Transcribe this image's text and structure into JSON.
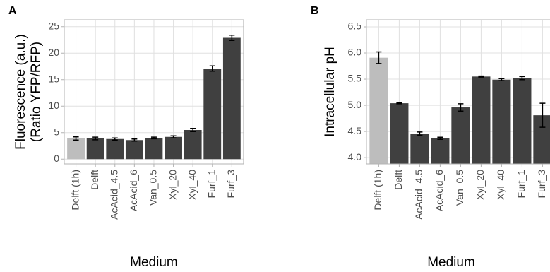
{
  "chart_data": [
    {
      "type": "bar",
      "tag": "A",
      "ylabel": [
        "Fluorescence (a.u.)",
        "(Ratio YFP/RFP)"
      ],
      "xlabel": "Medium",
      "categories": [
        "Delft (1h)",
        "Delft",
        "AcAcid_4.5",
        "AcAcid_6",
        "Van_0.5",
        "Xyl_20",
        "Xyl_40",
        "Furf_1",
        "Furf_3"
      ],
      "values": [
        3.9,
        3.9,
        3.8,
        3.6,
        4.0,
        4.2,
        5.5,
        17.1,
        22.9
      ],
      "errors": [
        0.3,
        0.25,
        0.2,
        0.2,
        0.15,
        0.2,
        0.3,
        0.5,
        0.5
      ],
      "colors": [
        "#bdbdbd",
        "#404040",
        "#404040",
        "#404040",
        "#404040",
        "#404040",
        "#404040",
        "#404040",
        "#404040"
      ],
      "ylim": [
        -0.9,
        26.3
      ],
      "yticks": [
        0,
        5,
        10,
        15,
        20,
        25
      ],
      "grid": true
    },
    {
      "type": "bar",
      "tag": "B",
      "ylabel": [
        "Intracellular pH"
      ],
      "xlabel": "Medium",
      "categories": [
        "Delft (1h)",
        "Delft",
        "AcAcid_4.5",
        "AcAcid_6",
        "Van_0.5",
        "Xyl_20",
        "Xyl_40",
        "Furf_1",
        "Furf_3"
      ],
      "values": [
        5.91,
        5.04,
        4.46,
        4.37,
        4.96,
        5.55,
        5.49,
        5.52,
        4.81
      ],
      "errors": [
        0.11,
        0.01,
        0.03,
        0.02,
        0.07,
        0.01,
        0.02,
        0.03,
        0.23
      ],
      "colors": [
        "#bdbdbd",
        "#404040",
        "#404040",
        "#404040",
        "#404040",
        "#404040",
        "#404040",
        "#404040",
        "#404040"
      ],
      "ylim": [
        3.88,
        6.635
      ],
      "yticks": [
        {
          "value": 4,
          "label": "4.0"
        },
        {
          "value": 4.5,
          "label": "4.5"
        },
        {
          "value": 5,
          "label": "5.0"
        },
        {
          "value": 5.5,
          "label": "5.5"
        },
        {
          "value": 6,
          "label": "6.0"
        },
        {
          "value": 6.5,
          "label": "6.5"
        }
      ],
      "grid": true
    }
  ]
}
